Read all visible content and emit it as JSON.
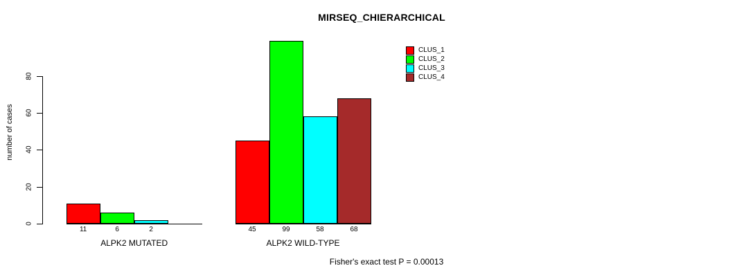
{
  "chart_data": {
    "type": "bar",
    "title": "MIRSEQ_CHIERARCHICAL",
    "xlabel": "",
    "ylabel": "number of cases",
    "yticks": [
      0,
      20,
      40,
      60,
      80
    ],
    "ylim": [
      0,
      99
    ],
    "grid": false,
    "legend_position": "top-right",
    "categories": [
      "ALPK2 MUTATED",
      "ALPK2 WILD-TYPE"
    ],
    "series": [
      {
        "name": "CLUS_1",
        "color": "#FF0000",
        "values": [
          11,
          45
        ]
      },
      {
        "name": "CLUS_2",
        "color": "#00FF00",
        "values": [
          6,
          99
        ]
      },
      {
        "name": "CLUS_3",
        "color": "#00FFFF",
        "values": [
          2,
          58
        ]
      },
      {
        "name": "CLUS_4",
        "color": "#A52A2A",
        "values": [
          0,
          68
        ]
      }
    ],
    "bar_labels": [
      [
        11,
        6,
        2
      ],
      [
        45,
        99,
        58,
        68
      ]
    ],
    "annotation": "Fisher's exact test P = 0.00013"
  }
}
